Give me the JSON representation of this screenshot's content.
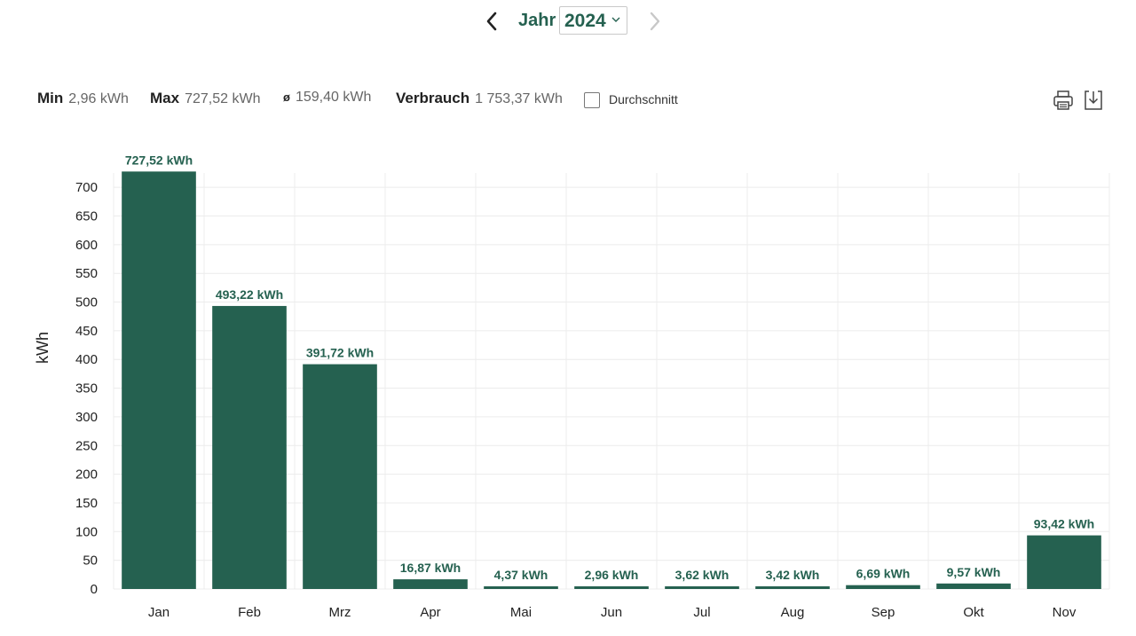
{
  "nav": {
    "period_label": "Jahr",
    "year_value": "2024",
    "prev_icon": "chevron-left-icon",
    "next_icon": "chevron-right-icon"
  },
  "stats": {
    "min_label": "Min",
    "min_value": "2,96 kWh",
    "max_label": "Max",
    "max_value": "727,52 kWh",
    "avg_symbol": "ø",
    "avg_value": "159,40 kWh",
    "total_label": "Verbrauch",
    "total_value": "1 753,37 kWh",
    "average_checkbox_label": "Durchschnitt",
    "average_checked": false
  },
  "toolbar": {
    "print_icon": "printer-icon",
    "download_icon": "download-icon"
  },
  "colors": {
    "bar": "#256150",
    "accent": "#256150",
    "grid": "#ececec",
    "axis_text": "#222222"
  },
  "chart_data": {
    "type": "bar",
    "title": "",
    "xlabel": "",
    "ylabel": "kWh",
    "ylim": [
      0,
      725
    ],
    "yticks": [
      0,
      50,
      100,
      150,
      200,
      250,
      300,
      350,
      400,
      450,
      500,
      550,
      600,
      650,
      700
    ],
    "grid": true,
    "categories": [
      "Jan",
      "Feb",
      "Mrz",
      "Apr",
      "Mai",
      "Jun",
      "Jul",
      "Aug",
      "Sep",
      "Okt",
      "Nov"
    ],
    "values": [
      727.52,
      493.22,
      391.72,
      16.87,
      4.37,
      2.96,
      3.62,
      3.42,
      6.69,
      9.57,
      93.42
    ],
    "data_labels": [
      "727,52 kWh",
      "493,22 kWh",
      "391,72 kWh",
      "16,87 kWh",
      "4,37 kWh",
      "2,96 kWh",
      "3,62 kWh",
      "3,42 kWh",
      "6,69 kWh",
      "9,57 kWh",
      "93,42 kWh"
    ]
  }
}
